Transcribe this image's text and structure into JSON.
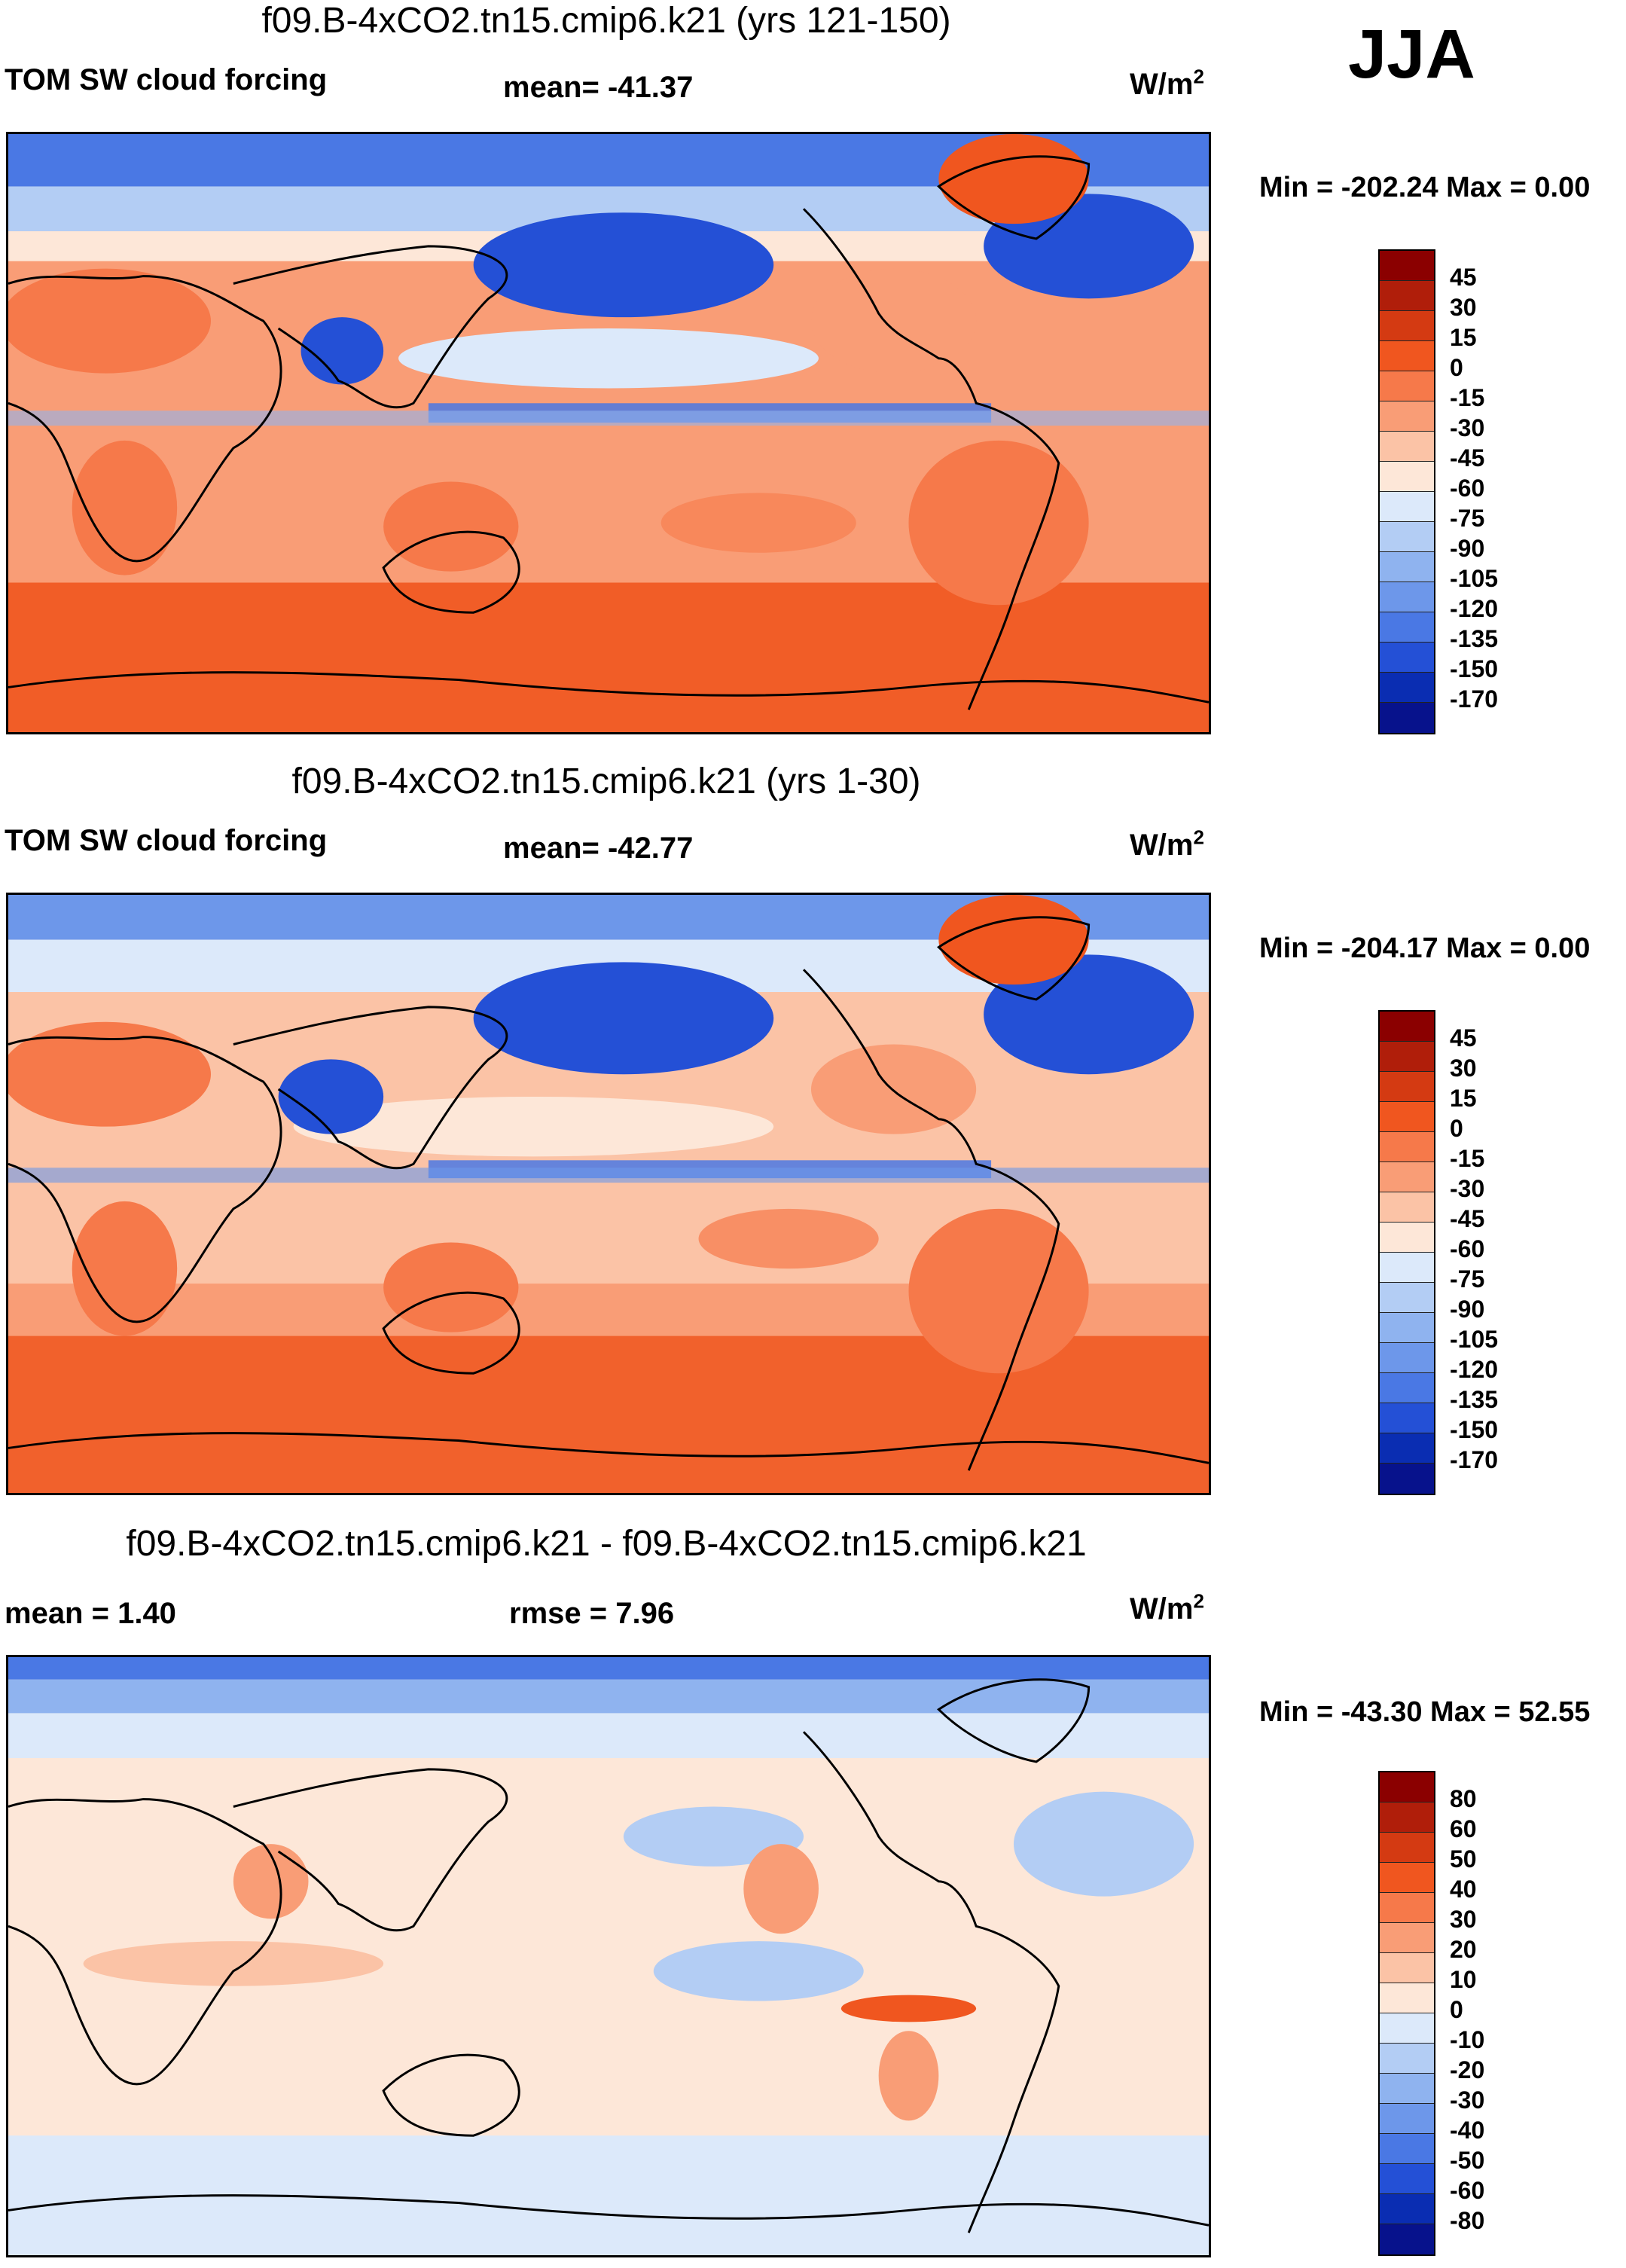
{
  "season": "JJA",
  "panels": [
    {
      "id": "top",
      "title": "f09.B-4xCO2.tn15.cmip6.k21 (yrs 121-150)",
      "left_label": "TOM SW cloud forcing",
      "center_label": "mean= -41.37",
      "units": "W/m",
      "units_sup": "2",
      "minmax": "Min = -202.24 Max =   0.00",
      "colorbar": {
        "labels": [
          "45",
          "30",
          "15",
          "0",
          "-15",
          "-30",
          "-45",
          "-60",
          "-75",
          "-90",
          "-105",
          "-120",
          "-135",
          "-150",
          "-170"
        ],
        "colors": [
          "#8b0000",
          "#b01e0a",
          "#d43a12",
          "#f0561f",
          "#f6794a",
          "#f99d76",
          "#fbc3a6",
          "#fde7d8",
          "#dce9fa",
          "#b3cdf4",
          "#8fb3ef",
          "#6d97ea",
          "#4a78e4",
          "#2450d6",
          "#0a2db2",
          "#07128c"
        ]
      }
    },
    {
      "id": "middle",
      "title": "f09.B-4xCO2.tn15.cmip6.k21 (yrs 1-30)",
      "left_label": "TOM SW cloud forcing",
      "center_label": "mean= -42.77",
      "units": "W/m",
      "units_sup": "2",
      "minmax": "Min = -204.17 Max =   0.00",
      "colorbar": {
        "labels": [
          "45",
          "30",
          "15",
          "0",
          "-15",
          "-30",
          "-45",
          "-60",
          "-75",
          "-90",
          "-105",
          "-120",
          "-135",
          "-150",
          "-170"
        ],
        "colors": [
          "#8b0000",
          "#b01e0a",
          "#d43a12",
          "#f0561f",
          "#f6794a",
          "#f99d76",
          "#fbc3a6",
          "#fde7d8",
          "#dce9fa",
          "#b3cdf4",
          "#8fb3ef",
          "#6d97ea",
          "#4a78e4",
          "#2450d6",
          "#0a2db2",
          "#07128c"
        ]
      }
    },
    {
      "id": "bottom",
      "title": "f09.B-4xCO2.tn15.cmip6.k21 - f09.B-4xCO2.tn15.cmip6.k21",
      "left_label": "mean =   1.40",
      "center_label": "rmse =   7.96",
      "units": "W/m",
      "units_sup": "2",
      "minmax": "Min = -43.30 Max =  52.55",
      "colorbar": {
        "labels": [
          "80",
          "60",
          "50",
          "40",
          "30",
          "20",
          "10",
          "0",
          "-10",
          "-20",
          "-30",
          "-40",
          "-50",
          "-60",
          "-80"
        ],
        "colors": [
          "#8b0000",
          "#b01e0a",
          "#d43a12",
          "#f0561f",
          "#f6794a",
          "#f99d76",
          "#fbc3a6",
          "#fde7d8",
          "#dce9fa",
          "#b3cdf4",
          "#8fb3ef",
          "#6d97ea",
          "#4a78e4",
          "#2450d6",
          "#0a2db2",
          "#07128c"
        ]
      }
    }
  ]
}
